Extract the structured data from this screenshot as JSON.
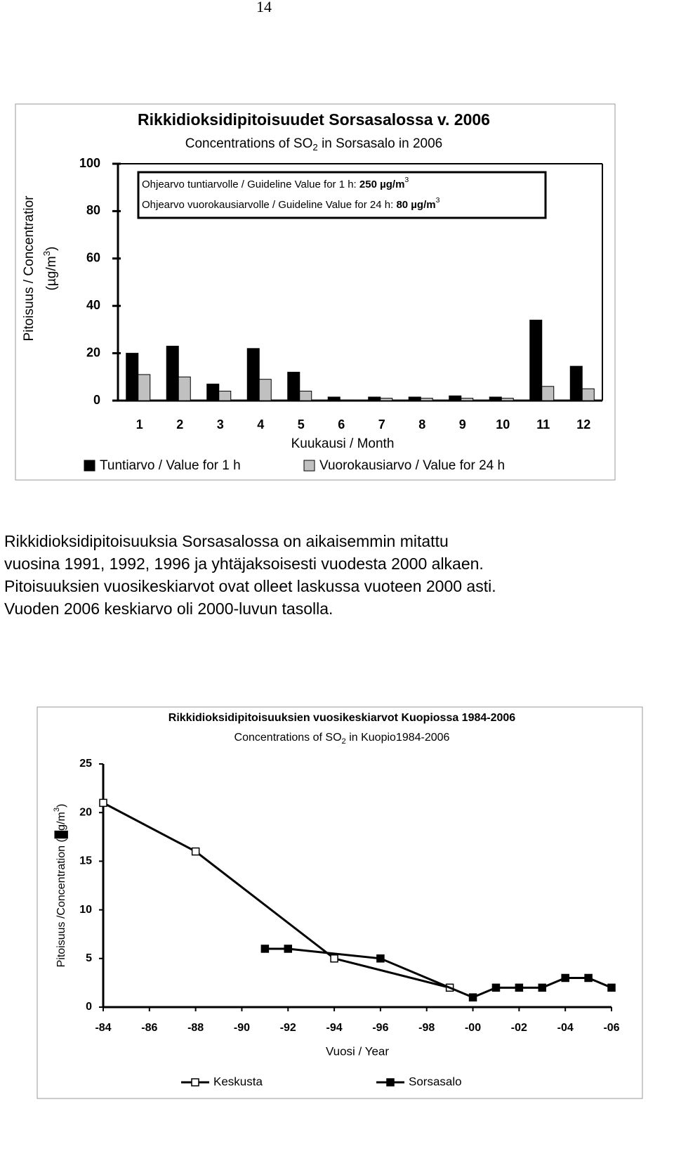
{
  "page_number": "14",
  "chart_data": [
    {
      "type": "bar",
      "title": "Rikkidioksidipitoisuudet Sorsasalossa v. 2006",
      "subtitle": [
        "Concentrations of SO",
        "2",
        " in Sorsasalo in 2006"
      ],
      "annotations": [
        [
          "Ohjearvo tuntiarvolle / Guideline Value for 1 h: ",
          "250 µg/m",
          "3"
        ],
        [
          "Ohjearvo vuorokausiarvolle / Guideline Value for 24 h: ",
          "80 µg/m",
          "3"
        ]
      ],
      "ylabel": [
        "Pitoisuus / Concentratior",
        [
          "(µg/m",
          "3",
          ")"
        ]
      ],
      "xlabel": "Kuukausi / Month",
      "categories": [
        "1",
        "2",
        "3",
        "4",
        "5",
        "6",
        "7",
        "8",
        "9",
        "10",
        "11",
        "12"
      ],
      "series": [
        {
          "name": "Tuntiarvo / Value for 1 h",
          "color": "#000000",
          "values": [
            20,
            23,
            7,
            22,
            12,
            1.5,
            1.5,
            1.5,
            2,
            1.5,
            34,
            14.5
          ]
        },
        {
          "name": "Vuorokausiarvo / Value for 24 h",
          "color": "#c0c0c0",
          "values": [
            11,
            10,
            4,
            9,
            4,
            0.3,
            1,
            1,
            1,
            1,
            6,
            5
          ]
        }
      ],
      "ylim": [
        0,
        100
      ],
      "yticks": [
        0,
        20,
        40,
        60,
        80,
        100
      ]
    },
    {
      "type": "line",
      "title": "Rikkidioksidipitoisuuksien vuosikeskiarvot Kuopiossa 1984-2006",
      "subtitle": [
        "Concentrations of SO",
        "2",
        " in Kuopio1984-2006"
      ],
      "ylabel": [
        "Pitoisuus /Concentration (█g/m",
        "3",
        ")"
      ],
      "xlabel": "Vuosi / Year",
      "series": [
        {
          "name": "Keskusta",
          "color": "#000000",
          "marker_fill": "#ffffff",
          "x": [
            1984,
            1988,
            1994,
            1999
          ],
          "values": [
            21,
            16,
            5,
            2
          ]
        },
        {
          "name": "Sorsasalo",
          "color": "#000000",
          "marker_fill": "#000000",
          "x": [
            1991,
            1992,
            1996,
            2000,
            2001,
            2002,
            2003,
            2004,
            2005,
            2006
          ],
          "values": [
            6,
            6,
            5,
            1,
            2,
            2,
            2,
            3,
            3,
            2
          ]
        }
      ],
      "xlim": [
        1984,
        2006
      ],
      "xticks": [
        {
          "value": 1984,
          "label": "-84"
        },
        {
          "value": 1986,
          "label": "-86"
        },
        {
          "value": 1988,
          "label": "-88"
        },
        {
          "value": 1990,
          "label": "-90"
        },
        {
          "value": 1992,
          "label": "-92"
        },
        {
          "value": 1994,
          "label": "-94"
        },
        {
          "value": 1996,
          "label": "-96"
        },
        {
          "value": 1998,
          "label": "-98"
        },
        {
          "value": 2000,
          "label": "-00"
        },
        {
          "value": 2002,
          "label": "-02"
        },
        {
          "value": 2004,
          "label": "-04"
        },
        {
          "value": 2006,
          "label": "-06"
        }
      ],
      "ylim": [
        0,
        25
      ],
      "yticks": [
        0,
        5,
        10,
        15,
        20,
        25
      ]
    }
  ],
  "paragraph": [
    "Rikkidioksidipitoisuuksia Sorsasalossa on aikaisemmin mitattu",
    "vuosina 1991, 1992, 1996 ja yhtäjaksoisesti vuodesta 2000 alkaen.",
    "Pitoisuuksien vuosikeskiarvot ovat olleet laskussa vuoteen 2000 asti.",
    "Vuoden 2006 keskiarvo oli 2000-luvun tasolla."
  ]
}
